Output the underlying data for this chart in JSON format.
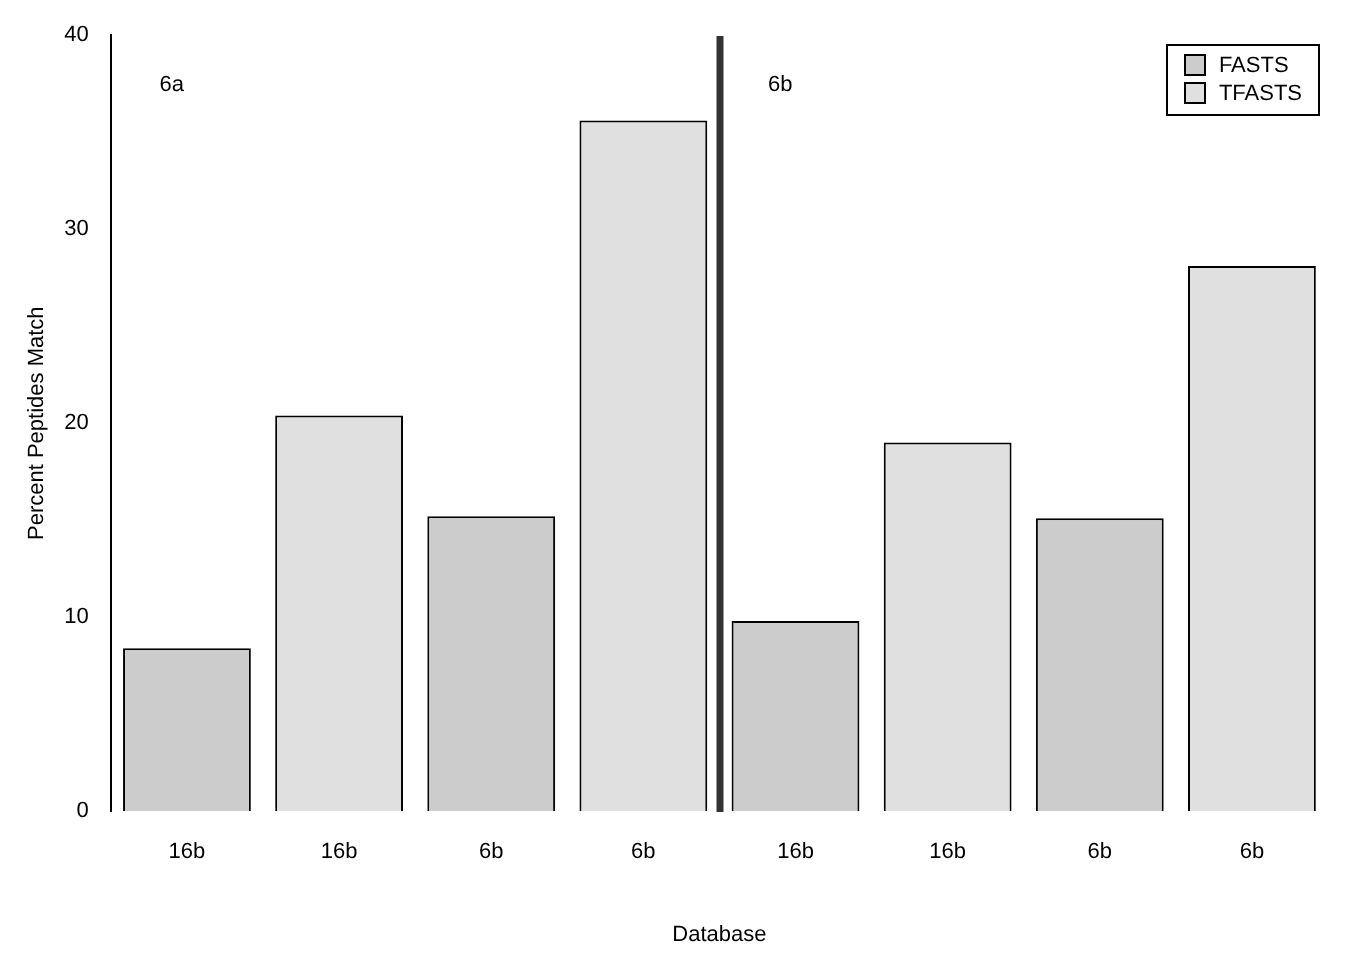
{
  "chart_data": {
    "type": "bar",
    "xlabel": "Database",
    "ylabel": "Percent Peptides Match",
    "categories": [
      "16b",
      "16b",
      "6b",
      "6b",
      "16b",
      "16b",
      "6b",
      "6b"
    ],
    "series": [
      {
        "name": "FASTS",
        "color": "#cccccc",
        "values": [
          8.4,
          null,
          15.2,
          null,
          9.8,
          null,
          15.1,
          null
        ]
      },
      {
        "name": "TFASTS",
        "color": "#e0e0e0",
        "values": [
          null,
          20.4,
          null,
          35.6,
          null,
          19.0,
          null,
          28.1
        ]
      }
    ],
    "ylim": [
      0,
      40
    ],
    "yticks": [
      0,
      10,
      20,
      30,
      40
    ],
    "grid": false,
    "legend": "top right",
    "annotations": [
      "6a",
      "6b"
    ]
  }
}
